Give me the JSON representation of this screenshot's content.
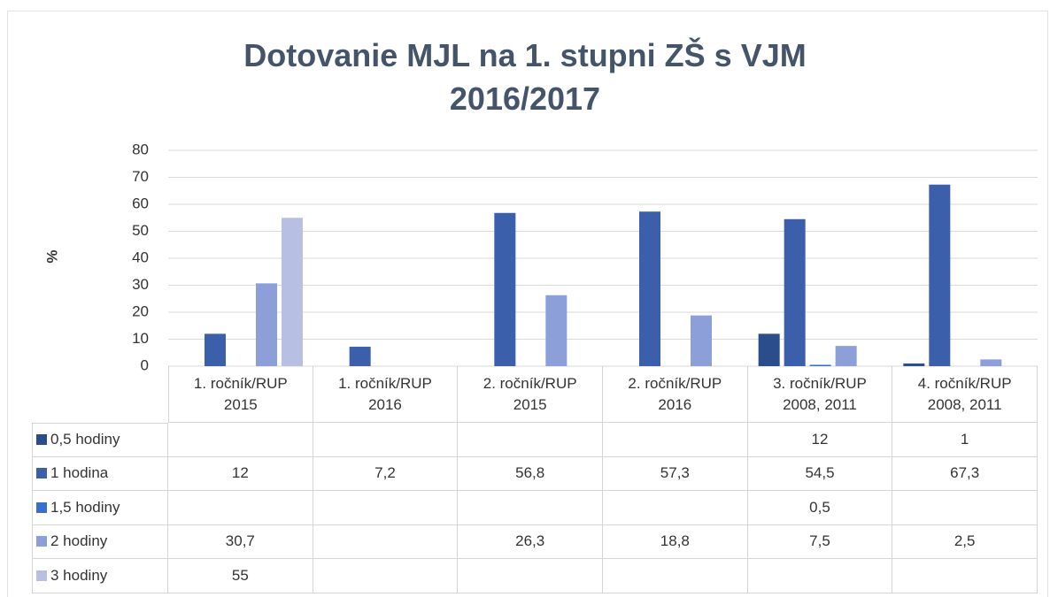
{
  "chart_data": {
    "type": "bar",
    "title": "Dotovanie MJL na 1. stupni ZŠ s VJM 2016/2017",
    "y_label": "%",
    "categories": [
      "1. ročník/RUP 2015",
      "1. ročník/RUP 2016",
      "2. ročník/RUP 2015",
      "2. ročník/RUP 2016",
      "3. ročník/RUP 2008, 2011",
      "4. ročník/RUP 2008, 2011"
    ],
    "series": [
      {
        "name": "0,5 hodiny",
        "color": "#2c4d8c",
        "values": [
          null,
          null,
          null,
          null,
          12,
          1
        ],
        "value_labels": [
          null,
          null,
          null,
          null,
          "12",
          "1"
        ]
      },
      {
        "name": "1 hodina",
        "color": "#3b5fab",
        "values": [
          12,
          7.2,
          56.8,
          57.3,
          54.5,
          67.3
        ],
        "value_labels": [
          "12",
          "7,2",
          "56,8",
          "57,3",
          "54,5",
          "67,3"
        ]
      },
      {
        "name": "1,5 hodiny",
        "color": "#3a6fd0",
        "values": [
          null,
          null,
          null,
          null,
          0.5,
          null
        ],
        "value_labels": [
          null,
          null,
          null,
          null,
          "0,5",
          null
        ]
      },
      {
        "name": "2 hodiny",
        "color": "#8c9fd9",
        "values": [
          30.7,
          null,
          26.3,
          18.8,
          7.5,
          2.5
        ],
        "value_labels": [
          "30,7",
          null,
          "26,3",
          "18,8",
          "7,5",
          "2,5"
        ]
      },
      {
        "name": "3 hodiny",
        "color": "#b7c0e2",
        "values": [
          55,
          null,
          null,
          null,
          null,
          null
        ],
        "value_labels": [
          "55",
          null,
          null,
          null,
          null,
          null
        ]
      }
    ],
    "ylim": [
      0,
      80
    ],
    "yticks": [
      0,
      10,
      20,
      30,
      40,
      50,
      60,
      70,
      80
    ],
    "grid": true,
    "data_table": true
  }
}
